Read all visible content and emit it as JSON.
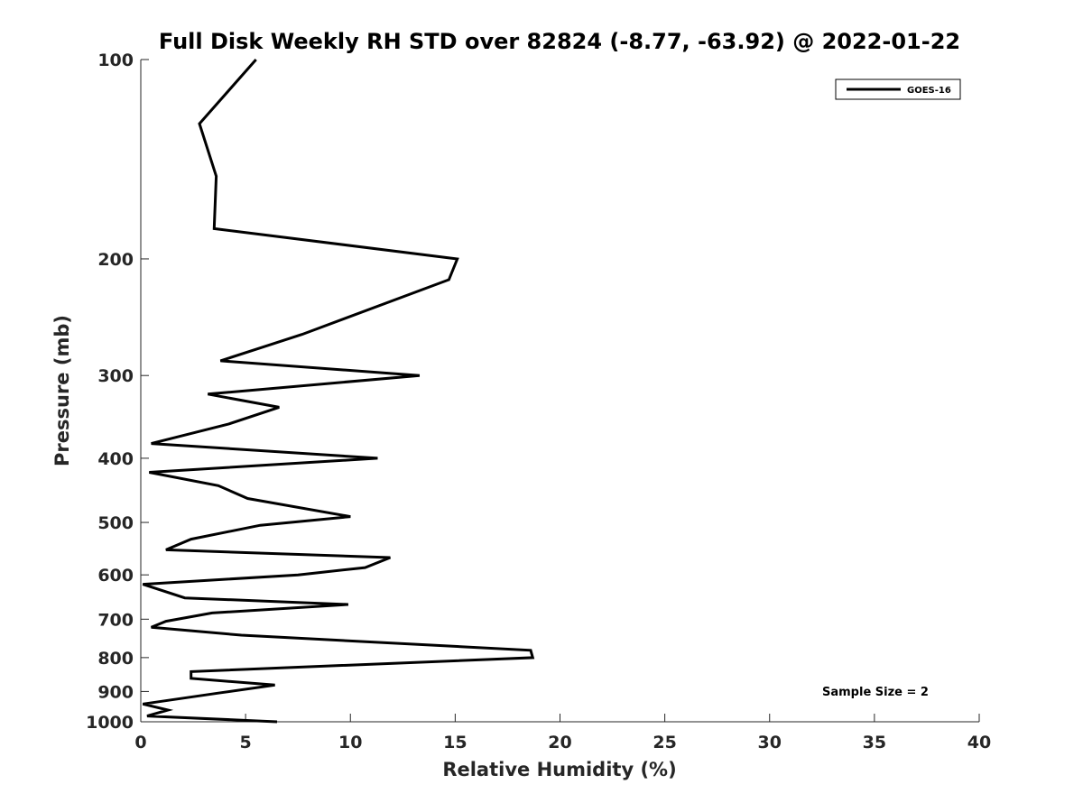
{
  "chart_data": {
    "type": "line",
    "title": "Full Disk Weekly RH STD over 82824 (-8.77, -63.92) @ 2022-01-22",
    "xlabel": "Relative Humidity (%)",
    "ylabel": "Pressure (mb)",
    "xlim": [
      0,
      40
    ],
    "ylim": [
      100,
      1000
    ],
    "y_scale": "log",
    "y_reversed": true,
    "grid": false,
    "x_ticks": [
      "0",
      "5",
      "10",
      "15",
      "20",
      "25",
      "30",
      "35",
      "40"
    ],
    "y_ticks": [
      "100",
      "200",
      "300",
      "400",
      "500",
      "600",
      "700",
      "800",
      "900",
      "1000"
    ],
    "legend_position": "top-right",
    "annotation": "Sample Size = 2",
    "series": [
      {
        "name": "GOES-16",
        "color": "#000000",
        "x": [
          5.5,
          2.8,
          3.6,
          3.5,
          15.1,
          14.7,
          7.7,
          3.8,
          13.3,
          3.2,
          6.6,
          4.2,
          0.5,
          11.3,
          0.4,
          3.7,
          5.1,
          10.0,
          5.7,
          2.4,
          1.2,
          11.9,
          10.7,
          7.5,
          0.1,
          2.1,
          9.9,
          3.4,
          1.2,
          0.5,
          4.8,
          18.6,
          18.7,
          2.4,
          2.4,
          6.4,
          3.7,
          0.1,
          1.3,
          0.3,
          6.5
        ],
        "y": [
          100,
          125,
          150,
          180,
          200,
          215,
          260,
          285,
          300,
          320,
          335,
          355,
          380,
          400,
          420,
          440,
          460,
          490,
          505,
          530,
          550,
          565,
          585,
          600,
          620,
          650,
          665,
          685,
          705,
          720,
          740,
          780,
          800,
          840,
          860,
          880,
          905,
          940,
          960,
          980,
          1000
        ]
      }
    ]
  }
}
